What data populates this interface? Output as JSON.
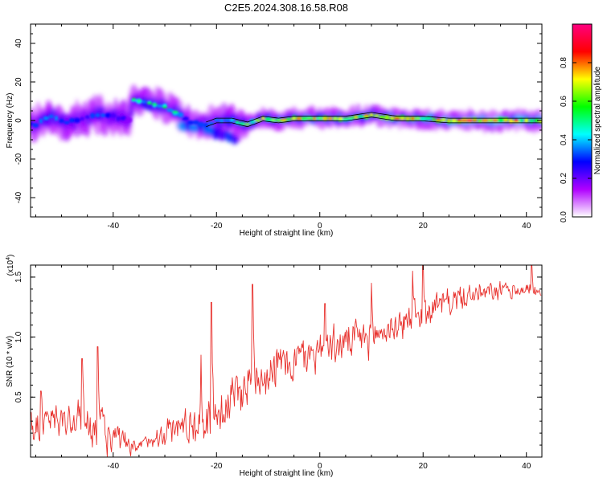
{
  "figure": {
    "title": "C2E5.2024.308.16.58.R08"
  },
  "chart_data": [
    {
      "type": "heatmap",
      "xlabel": "Height of straight line (km)",
      "ylabel": "Frequency (Hz)",
      "xlim": [
        -56,
        43
      ],
      "ylim": [
        -50,
        50
      ],
      "xticks": [
        -40,
        -20,
        0,
        20,
        40
      ],
      "yticks": [
        -40,
        -20,
        0,
        20,
        40
      ],
      "colorbar": {
        "label": "Normalized spectral amplitude",
        "range": [
          0,
          1
        ],
        "ticks": [
          0.0,
          0.2,
          0.4,
          0.6,
          0.8
        ],
        "tick_labels": [
          "0.0",
          "0.2",
          "0.4",
          "0.6",
          "0.8"
        ],
        "colors": [
          "#ffffff",
          "#b000ff",
          "#0000ff",
          "#00ffff",
          "#00ff00",
          "#ffff00",
          "#ff0000",
          "#ff0080"
        ]
      },
      "ridge": [
        {
          "x": -55,
          "y": -2,
          "amp": 0.45
        },
        {
          "x": -52,
          "y": 2,
          "amp": 0.5
        },
        {
          "x": -49,
          "y": -1,
          "amp": 0.42
        },
        {
          "x": -46,
          "y": 1,
          "amp": 0.4
        },
        {
          "x": -43,
          "y": 3,
          "amp": 0.45
        },
        {
          "x": -40,
          "y": 2,
          "amp": 0.4
        },
        {
          "x": -37,
          "y": 0,
          "amp": 0.3
        },
        {
          "x": -36,
          "y": 11,
          "amp": 0.55
        },
        {
          "x": -33,
          "y": 9,
          "amp": 0.6
        },
        {
          "x": -30,
          "y": 7,
          "amp": 0.55
        },
        {
          "x": -27,
          "y": 3,
          "amp": 0.5
        },
        {
          "x": -25,
          "y": -1,
          "amp": 0.45
        },
        {
          "x": -22,
          "y": -2,
          "amp": 0.4
        },
        {
          "x": -20,
          "y": 0,
          "amp": 0.55
        },
        {
          "x": -17,
          "y": 0,
          "amp": 0.6
        },
        {
          "x": -14,
          "y": -2,
          "amp": 0.65
        },
        {
          "x": -11,
          "y": 1,
          "amp": 0.7
        },
        {
          "x": -8,
          "y": 0,
          "amp": 0.7
        },
        {
          "x": -5,
          "y": 1,
          "amp": 0.75
        },
        {
          "x": 0,
          "y": 1,
          "amp": 0.8
        },
        {
          "x": 5,
          "y": 1,
          "amp": 0.8
        },
        {
          "x": 10,
          "y": 3,
          "amp": 0.8
        },
        {
          "x": 15,
          "y": 1,
          "amp": 0.85
        },
        {
          "x": 20,
          "y": 1,
          "amp": 0.8
        },
        {
          "x": 25,
          "y": 0,
          "amp": 0.9
        },
        {
          "x": 30,
          "y": 0,
          "amp": 0.95
        },
        {
          "x": 35,
          "y": 0,
          "amp": 0.95
        },
        {
          "x": 40,
          "y": 0,
          "amp": 0.9
        },
        {
          "x": 43,
          "y": 0,
          "amp": 0.9
        }
      ],
      "branch": [
        {
          "x": -27,
          "y": -2
        },
        {
          "x": -22,
          "y": -5
        },
        {
          "x": -18,
          "y": -8
        },
        {
          "x": -16,
          "y": -10
        }
      ]
    },
    {
      "type": "line",
      "xlabel": "Height of straight line (km)",
      "ylabel": "SNR (10 * v/v)",
      "y_multiplier": "(x10^4)",
      "y_multiplier_base": "(x10",
      "y_multiplier_exp": "4",
      "y_multiplier_close": ")",
      "xlim": [
        -56,
        43
      ],
      "ylim": [
        0,
        1.6
      ],
      "xticks": [
        -40,
        -20,
        0,
        20,
        40
      ],
      "yticks": [
        0.5,
        1.0,
        1.5
      ],
      "ytick_labels": [
        "0.5",
        "1.0",
        "1.5"
      ],
      "series": [
        {
          "color": "#e8322e",
          "trend": [
            {
              "x": -56,
              "y": 0.25
            },
            {
              "x": -50,
              "y": 0.3
            },
            {
              "x": -45,
              "y": 0.3
            },
            {
              "x": -40,
              "y": 0.15
            },
            {
              "x": -36,
              "y": 0.05
            },
            {
              "x": -33,
              "y": 0.15
            },
            {
              "x": -28,
              "y": 0.25
            },
            {
              "x": -22,
              "y": 0.3
            },
            {
              "x": -18,
              "y": 0.45
            },
            {
              "x": -12,
              "y": 0.7
            },
            {
              "x": -5,
              "y": 0.8
            },
            {
              "x": 0,
              "y": 0.9
            },
            {
              "x": 5,
              "y": 0.95
            },
            {
              "x": 10,
              "y": 1.0
            },
            {
              "x": 15,
              "y": 1.1
            },
            {
              "x": 20,
              "y": 1.2
            },
            {
              "x": 25,
              "y": 1.3
            },
            {
              "x": 30,
              "y": 1.35
            },
            {
              "x": 35,
              "y": 1.38
            },
            {
              "x": 40,
              "y": 1.4
            },
            {
              "x": 43,
              "y": 1.38
            }
          ],
          "noise": [
            {
              "x": -56,
              "y": 0.25
            },
            {
              "x": -40,
              "y": 0.25
            },
            {
              "x": -35,
              "y": 0.08
            },
            {
              "x": -20,
              "y": 0.35
            },
            {
              "x": 0,
              "y": 0.25
            },
            {
              "x": 20,
              "y": 0.2
            },
            {
              "x": 43,
              "y": 0.08
            }
          ],
          "peaks": [
            {
              "x": -54,
              "y": 0.55
            },
            {
              "x": -46,
              "y": 0.82
            },
            {
              "x": -43,
              "y": 0.92
            },
            {
              "x": -23,
              "y": 0.85
            },
            {
              "x": -21,
              "y": 1.29
            },
            {
              "x": -13,
              "y": 1.44
            },
            {
              "x": 1,
              "y": 1.28
            },
            {
              "x": 10,
              "y": 1.45
            },
            {
              "x": 18,
              "y": 1.55
            },
            {
              "x": 20,
              "y": 1.6
            },
            {
              "x": 41,
              "y": 1.6
            }
          ]
        }
      ]
    }
  ]
}
